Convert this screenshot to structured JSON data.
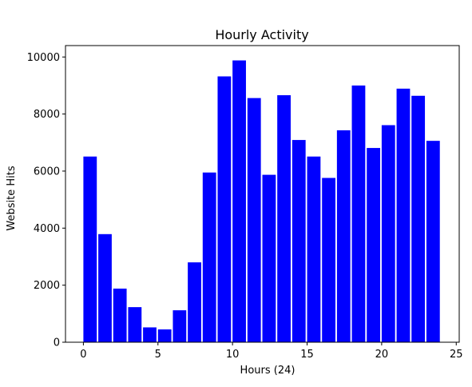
{
  "chart_data": {
    "type": "bar",
    "title": "Hourly Activity",
    "xlabel": "Hours (24)",
    "ylabel": "Website Hits",
    "bar_color": "#0000ff",
    "xlim": [
      -1.2,
      25.2
    ],
    "ylim": [
      0,
      10400
    ],
    "xticks": [
      0,
      5,
      10,
      15,
      20,
      25
    ],
    "yticks": [
      0,
      2000,
      4000,
      6000,
      8000,
      10000
    ],
    "x": [
      0,
      1,
      2,
      3,
      4,
      5,
      6,
      7,
      8,
      9,
      10,
      11,
      12,
      13,
      14,
      15,
      16,
      17,
      18,
      19,
      20,
      21,
      22,
      23
    ],
    "values": [
      6510,
      3790,
      1880,
      1230,
      520,
      450,
      1120,
      2800,
      5950,
      9320,
      9880,
      8560,
      5870,
      8660,
      7090,
      6510,
      5760,
      7430,
      9000,
      6810,
      7610,
      8890,
      8640,
      7060
    ],
    "grid": false,
    "legend": "none"
  }
}
